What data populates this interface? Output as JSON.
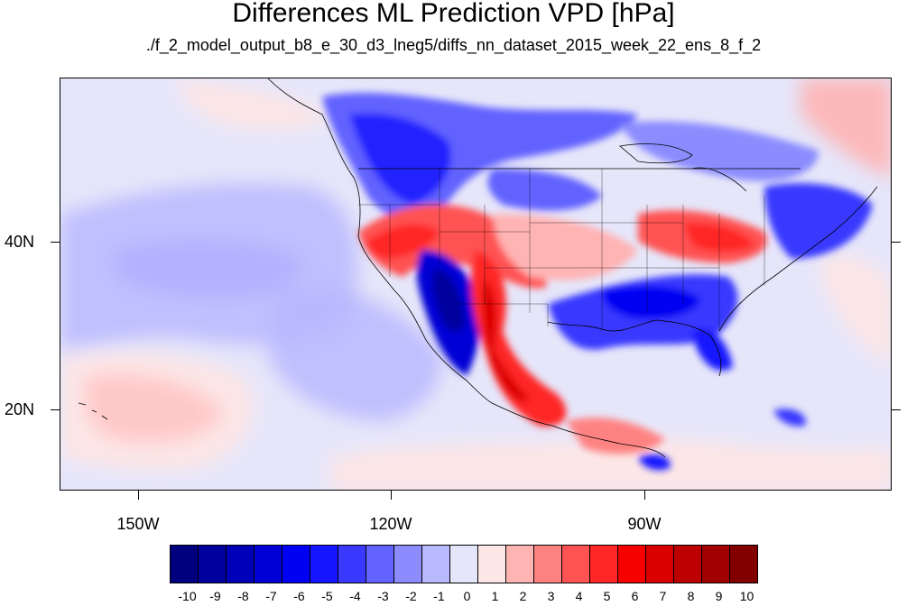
{
  "header": {
    "title": "Differences ML Prediction VPD [hPa]",
    "subtitle": "./f_2_model_output_b8_e_30_d3_lneg5/diffs_nn_dataset_2015_week_22_ens_8_f_2"
  },
  "map": {
    "projection": "cylindrical-equidistant",
    "lon_range": [
      -159,
      -61
    ],
    "lat_range": [
      11,
      59
    ],
    "lat_labels": [
      {
        "lat": 40,
        "label": "40N"
      },
      {
        "lat": 20,
        "label": "20N"
      }
    ],
    "lon_labels": [
      {
        "lon": -150,
        "label": "150W"
      },
      {
        "lon": -120,
        "label": "120W"
      },
      {
        "lon": -90,
        "label": "90W"
      }
    ],
    "field": "VPD difference (ML prediction)",
    "features": [
      {
        "region": "Pacific Northwest / British Columbia",
        "sign": "negative",
        "magnitude": "-3 to -6"
      },
      {
        "region": "California coast / Great Basin rim",
        "sign": "positive",
        "magnitude": "3 to 6"
      },
      {
        "region": "Nevada / Arizona / Baja California",
        "sign": "negative",
        "magnitude": "-4 to -8"
      },
      {
        "region": "Sierra Madre Occidental / Western Mexico",
        "sign": "positive",
        "magnitude": "3 to 7"
      },
      {
        "region": "Texas / Gulf Coast / Southeast US",
        "sign": "negative",
        "magnitude": "-2 to -6"
      },
      {
        "region": "Ohio Valley / Mid-Atlantic",
        "sign": "positive",
        "magnitude": "2 to 5"
      },
      {
        "region": "Eastern Canada / New England",
        "sign": "negative",
        "magnitude": "-2 to -5"
      },
      {
        "region": "Subtropical Pacific west of Mexico",
        "sign": "negative",
        "magnitude": "-1 to -2"
      },
      {
        "region": "Tropical Pacific near Hawaii",
        "sign": "positive",
        "magnitude": "1 to 2"
      }
    ]
  },
  "colorbar": {
    "labels": [
      "-10",
      "-9",
      "-8",
      "-7",
      "-6",
      "-5",
      "-4",
      "-3",
      "-2",
      "-1",
      "0",
      "1",
      "2",
      "3",
      "4",
      "5",
      "6",
      "7",
      "8",
      "9",
      "10"
    ],
    "colors": [
      "#00007f",
      "#00009c",
      "#0000b9",
      "#0000d6",
      "#0000f3",
      "#1515ff",
      "#3939ff",
      "#6262ff",
      "#8c8cff",
      "#b9b9ff",
      "#e6e6fa",
      "#fde6e6",
      "#ffb4b4",
      "#ff8282",
      "#ff5252",
      "#ff2727",
      "#f70000",
      "#da0000",
      "#bd0000",
      "#a00000",
      "#830000"
    ]
  }
}
